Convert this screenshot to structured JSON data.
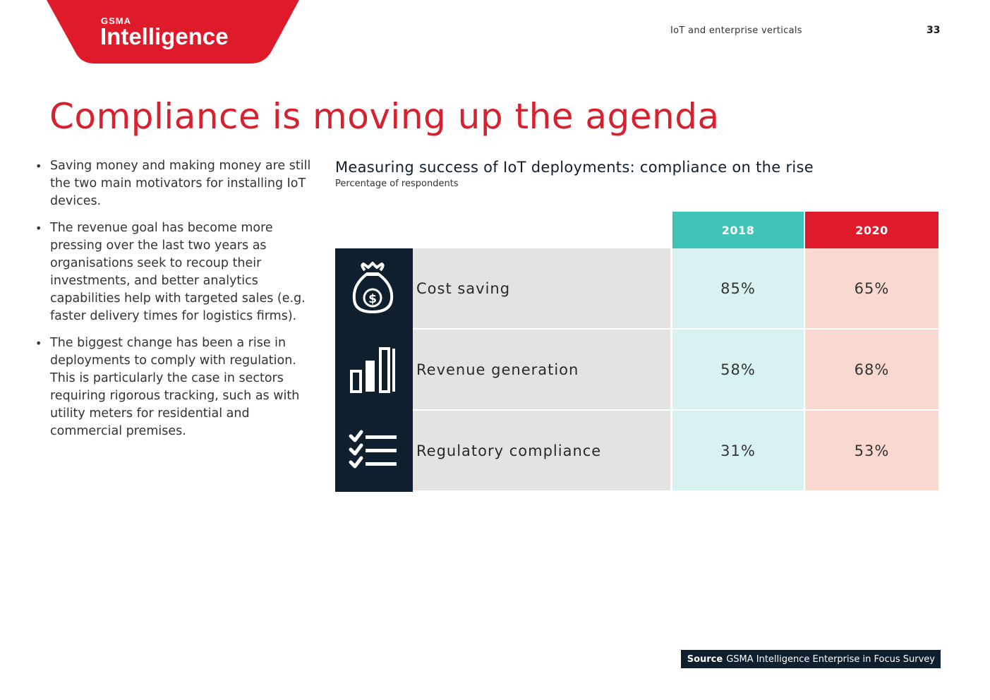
{
  "logo": {
    "small": "GSMA",
    "main": "Intelligence"
  },
  "header": {
    "section": "IoT and enterprise verticals",
    "page": "33"
  },
  "title": "Compliance is moving up the agenda",
  "bullets": [
    "Saving money and making money are still the two main motivators for installing IoT devices.",
    "The revenue goal has become more pressing over the last two years as organisations seek to recoup their investments, and better analytics capabilities help with targeted sales (e.g. faster delivery times for logistics firms).",
    "The biggest change has been a rise in deployments to comply with regulation. This is particularly the case in sectors requiring rigorous tracking, such as with utility meters for residential and commercial premises."
  ],
  "chart": {
    "title": "Measuring success of IoT deployments: compliance on the rise",
    "subtitle": "Percentage of respondents",
    "columns": [
      "2018",
      "2020"
    ],
    "rows": [
      {
        "label": "Cost saving",
        "icon": "money-bag-icon",
        "v2018": "85%",
        "v2020": "65%"
      },
      {
        "label": "Revenue generation",
        "icon": "bar-chart-icon",
        "v2018": "58%",
        "v2020": "68%"
      },
      {
        "label": "Regulatory compliance",
        "icon": "checklist-icon",
        "v2018": "31%",
        "v2020": "53%"
      }
    ]
  },
  "colors": {
    "brand_red": "#df1b2b",
    "teal": "#40c4b8",
    "navy": "#0f1f2e"
  },
  "source": {
    "label": "Source",
    "text": "GSMA Intelligence Enterprise in Focus Survey"
  }
}
